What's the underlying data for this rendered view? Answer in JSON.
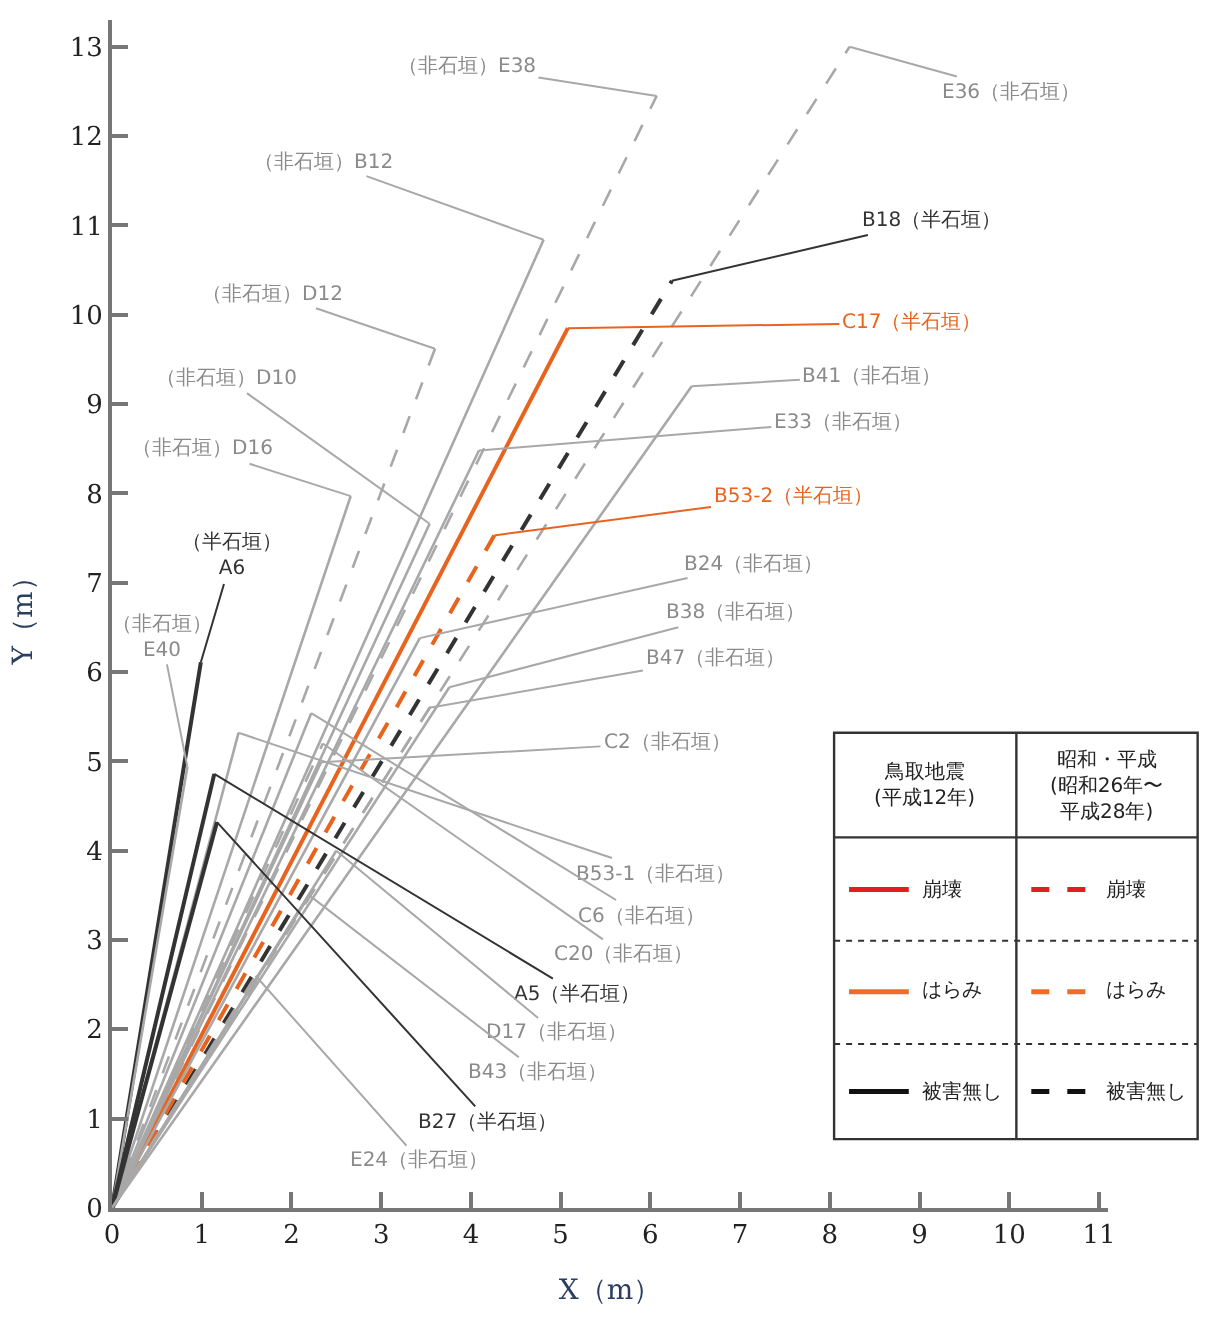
{
  "chart_data": {
    "type": "line",
    "xlabel": "X（m）",
    "ylabel": "Y（m）",
    "xlim": [
      0,
      11.1
    ],
    "ylim": [
      0,
      13.3
    ],
    "xticks": [
      0,
      1,
      2,
      3,
      4,
      5,
      6,
      7,
      8,
      9,
      10,
      11
    ],
    "yticks": [
      0,
      1,
      2,
      3,
      4,
      5,
      6,
      7,
      8,
      9,
      10,
      11,
      12,
      13
    ],
    "series": [
      {
        "name": "（非石垣）E38",
        "color": "#a8a8a8",
        "line_style": "dashed",
        "x": [
          0,
          6.07
        ],
        "values": [
          0,
          12.45
        ]
      },
      {
        "name": "E36（非石垣）",
        "color": "#a8a8a8",
        "line_style": "dashed",
        "x": [
          0,
          8.22
        ],
        "values": [
          0,
          13.0
        ]
      },
      {
        "name": "（非石垣）B12",
        "color": "#a8a8a8",
        "line_style": "solid",
        "x": [
          0,
          4.81
        ],
        "values": [
          0,
          10.84
        ]
      },
      {
        "name": "（非石垣）D12",
        "color": "#a8a8a8",
        "line_style": "dashed",
        "x": [
          0,
          3.6
        ],
        "values": [
          0,
          9.62
        ]
      },
      {
        "name": "（非石垣）D10",
        "color": "#a8a8a8",
        "line_style": "solid",
        "x": [
          0,
          3.54
        ],
        "values": [
          0,
          7.66
        ]
      },
      {
        "name": "（非石垣）D16",
        "color": "#a8a8a8",
        "line_style": "solid",
        "x": [
          0,
          2.66
        ],
        "values": [
          0,
          7.97
        ]
      },
      {
        "name": "（半石垣）\nA6",
        "color": "#333333",
        "line_style": "solid",
        "x": [
          0,
          0.99
        ],
        "values": [
          0,
          6.11
        ]
      },
      {
        "name": "（非石垣）\nE40",
        "color": "#a8a8a8",
        "line_style": "solid",
        "x": [
          0,
          0.84
        ],
        "values": [
          0,
          4.94
        ]
      },
      {
        "name": "B18（半石垣）",
        "color": "#333333",
        "line_style": "dashed",
        "x": [
          0,
          6.24
        ],
        "values": [
          0,
          10.38
        ]
      },
      {
        "name": "C17（半石垣）",
        "color": "#e8641e",
        "line_style": "solid",
        "x": [
          0,
          5.08
        ],
        "values": [
          0,
          9.85
        ]
      },
      {
        "name": "B41（非石垣）",
        "color": "#a8a8a8",
        "line_style": "solid",
        "x": [
          0,
          6.46
        ],
        "values": [
          0,
          9.2
        ]
      },
      {
        "name": "E33（非石垣）",
        "color": "#a8a8a8",
        "line_style": "solid",
        "x": [
          0,
          4.09
        ],
        "values": [
          0,
          8.48
        ]
      },
      {
        "name": "B53-2（半石垣）",
        "color": "#e8641e",
        "line_style": "dashed",
        "x": [
          0,
          4.26
        ],
        "values": [
          0,
          7.53
        ]
      },
      {
        "name": "B24（非石垣）",
        "color": "#a8a8a8",
        "line_style": "solid",
        "x": [
          0,
          3.43
        ],
        "values": [
          0,
          6.38
        ]
      },
      {
        "name": "B38（非石垣）",
        "color": "#a8a8a8",
        "line_style": "solid",
        "x": [
          0,
          3.76
        ],
        "values": [
          0,
          5.83
        ]
      },
      {
        "name": "B47（非石垣）",
        "color": "#a8a8a8",
        "line_style": "dashed",
        "x": [
          0,
          3.54
        ],
        "values": [
          0,
          5.6
        ]
      },
      {
        "name": "C2（非石垣）",
        "color": "#a8a8a8",
        "line_style": "solid",
        "x": [
          0,
          2.33
        ],
        "values": [
          0,
          4.99
        ]
      },
      {
        "name": "B53-1（非石垣）",
        "color": "#a8a8a8",
        "line_style": "solid",
        "x": [
          0,
          1.41
        ],
        "values": [
          0,
          5.32
        ]
      },
      {
        "name": "C6（非石垣）",
        "color": "#a8a8a8",
        "line_style": "solid",
        "x": [
          0,
          2.22
        ],
        "values": [
          0,
          5.54
        ]
      },
      {
        "name": "C20（非石垣）",
        "color": "#a8a8a8",
        "line_style": "dashed",
        "x": [
          0,
          2.35
        ],
        "values": [
          0,
          5.2
        ]
      },
      {
        "name": "A5（半石垣）",
        "color": "#333333",
        "line_style": "solid",
        "x": [
          0,
          1.14
        ],
        "values": [
          0,
          4.86
        ]
      },
      {
        "name": "D17（非石垣）",
        "color": "#a8a8a8",
        "line_style": "solid",
        "x": [
          0,
          2.5
        ],
        "values": [
          0,
          4.0
        ]
      },
      {
        "name": "B43（非石垣）",
        "color": "#a8a8a8",
        "line_style": "solid",
        "x": [
          0,
          2.2
        ],
        "values": [
          0,
          3.5
        ]
      },
      {
        "name": "B27（半石垣）",
        "color": "#333333",
        "line_style": "solid",
        "x": [
          0,
          1.17
        ],
        "values": [
          0,
          4.32
        ]
      },
      {
        "name": "E24（非石垣）",
        "color": "#a8a8a8",
        "line_style": "dashed",
        "x": [
          0,
          1.6
        ],
        "values": [
          0,
          2.6
        ]
      }
    ],
    "annotations": [
      "鳥取地震\n(平成12年)",
      "昭和・平成\n(昭和26年〜平成28年)",
      "崩壊",
      "崩壊",
      "はらみ",
      "はらみ",
      "被害無し",
      "被害無し"
    ]
  }
}
